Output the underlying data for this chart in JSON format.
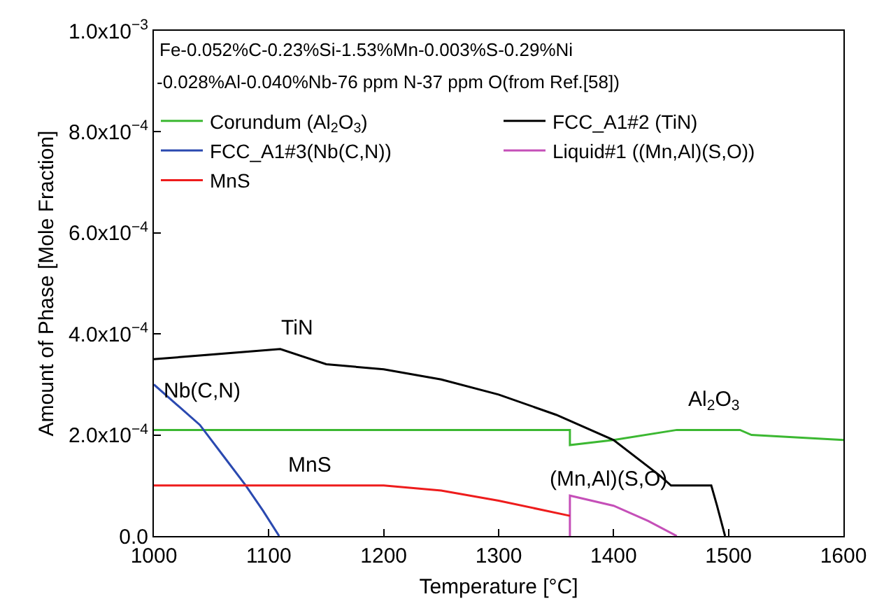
{
  "chart_data": {
    "type": "line",
    "xlabel": "Temperature [°C]",
    "ylabel": "Amount of Phase [Mole Fraction]",
    "xlim": [
      1000,
      1600
    ],
    "xticks": [
      1000,
      1100,
      1200,
      1300,
      1400,
      1500,
      1600
    ],
    "ylim": [
      0,
      0.001
    ],
    "yticks": [
      {
        "value": 0,
        "label": "0.0"
      },
      {
        "value": 0.0002,
        "label": "2.0x10$^{−4}$"
      },
      {
        "value": 0.0004,
        "label": "4.0x10$^{−4}$"
      },
      {
        "value": 0.0006,
        "label": "6.0x10$^{−4}$"
      },
      {
        "value": 0.0008,
        "label": "8.0x10$^{−4}$"
      },
      {
        "value": 0.001,
        "label": "1.0x10$^{−3}$"
      }
    ],
    "legend": "top left",
    "marker": "none",
    "line_style": "solid",
    "series": [
      {
        "name": "Corundum (Al$_{2}$O$_{3}$)",
        "color": "#3cb832",
        "x": [
          1000,
          1362,
          1362,
          1400,
          1455,
          1510,
          1520,
          1600
        ],
        "values": [
          0.00021,
          0.00021,
          0.00018,
          0.00019,
          0.00021,
          0.00021,
          0.0002,
          0.00019
        ]
      },
      {
        "name": "FCC_A1#2 (TiN)",
        "color": "#000000",
        "x": [
          1000,
          1110,
          1150,
          1200,
          1250,
          1300,
          1350,
          1400,
          1440,
          1450,
          1470,
          1485,
          1490,
          1497
        ],
        "values": [
          0.00035,
          0.00037,
          0.00034,
          0.00033,
          0.00031,
          0.00028,
          0.00024,
          0.00019,
          0.00012,
          0.0001,
          0.0001,
          0.0001,
          6e-05,
          0
        ]
      },
      {
        "name": "FCC_A1#3(Nb(C,N))",
        "color": "#2a49b0",
        "x": [
          1000,
          1020,
          1040,
          1060,
          1080,
          1095,
          1109
        ],
        "values": [
          0.0003,
          0.00026,
          0.00022,
          0.00016,
          0.0001,
          5e-05,
          0
        ]
      },
      {
        "name": "Liquid#1 ((Mn,Al)(S,O))",
        "color": "#c54fb8",
        "x": [
          1362,
          1362,
          1400,
          1430,
          1455
        ],
        "values": [
          0,
          8e-05,
          6e-05,
          3e-05,
          0
        ]
      },
      {
        "name": "MnS",
        "color": "#ee1c1c",
        "x": [
          1000,
          1100,
          1200,
          1250,
          1300,
          1362
        ],
        "values": [
          0.0001,
          0.0001,
          0.0001,
          9e-05,
          7e-05,
          4e-05
        ]
      }
    ],
    "annotations": [
      "Fe-0.052%C-0.23%Si-1.53%Mn-0.003%S-0.29%Ni",
      "-0.028%Al-0.040%Nb-76 ppm N-37 ppm O(from Ref.[58])",
      "TiN",
      "Nb(C,N)",
      "MnS",
      "(Mn,Al)(S,O)",
      "Al$_{2}$O$_{3}$"
    ]
  }
}
